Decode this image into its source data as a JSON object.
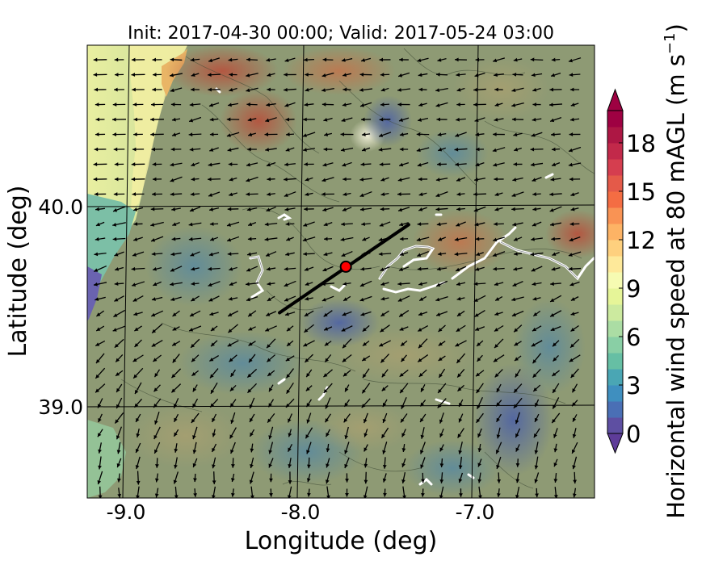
{
  "title": "Init: 2017-04-30 00:00; Valid: 2017-05-24 03:00",
  "xlabel": "Longitude (deg)",
  "ylabel": "Latitude (deg)",
  "x_ticks": [
    {
      "value": -9.0,
      "label": "-9.0"
    },
    {
      "value": -8.0,
      "label": "-8.0"
    },
    {
      "value": -7.0,
      "label": "-7.0"
    }
  ],
  "y_ticks": [
    {
      "value": 40.0,
      "label": "40.0"
    },
    {
      "value": 39.0,
      "label": "39.0"
    }
  ],
  "colorbar": {
    "label": "Horizontal wind speed at 80 mAGL (m s",
    "label_superscript": "−1",
    "label_close": ")",
    "min": 0,
    "max": 20,
    "extend": "both",
    "ticks": [
      {
        "value": 0,
        "label": "0"
      },
      {
        "value": 3,
        "label": "3"
      },
      {
        "value": 6,
        "label": "6"
      },
      {
        "value": 9,
        "label": "9"
      },
      {
        "value": 12,
        "label": "12"
      },
      {
        "value": 15,
        "label": "15"
      },
      {
        "value": 18,
        "label": "18"
      }
    ],
    "colors": [
      "#5e4fa2",
      "#4a6fb5",
      "#3f8fbf",
      "#4aa6b4",
      "#66bfa4",
      "#89cfa5",
      "#abdda4",
      "#ccea9f",
      "#e6f598",
      "#f6fbb2",
      "#fee99a",
      "#fed07e",
      "#fdb365",
      "#f99354",
      "#f46d43",
      "#e45a49",
      "#d53e4f",
      "#c2294a",
      "#ad1744",
      "#9e0142"
    ]
  },
  "transect": {
    "start": {
      "lon": -8.12,
      "lat": 39.47
    },
    "end": {
      "lon": -7.38,
      "lat": 39.91
    }
  },
  "site_marker": {
    "lon": -7.74,
    "lat": 39.7
  }
}
